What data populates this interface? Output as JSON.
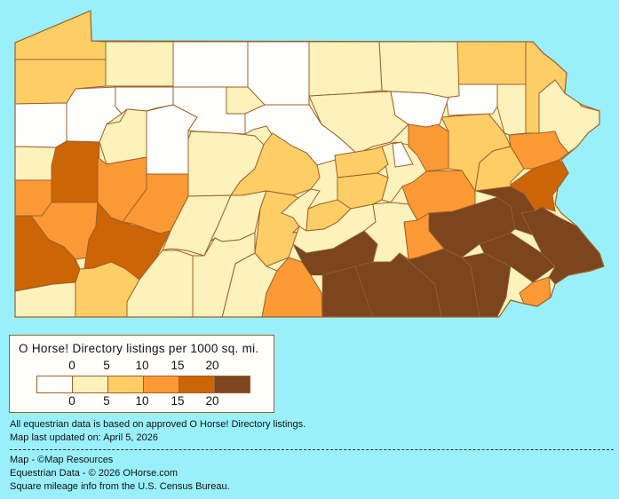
{
  "legend": {
    "title": "O Horse! Directory listings per 1000 sq. mi.",
    "top_ticks": [
      "0",
      "5",
      "10",
      "15",
      "20"
    ],
    "bottom_ticks": [
      "0",
      "5",
      "10",
      "15",
      "20"
    ],
    "class_colors": [
      "#fefefc",
      "#fdf2bb",
      "#fdce66",
      "#fb9935",
      "#cb6505",
      "#7c451e"
    ]
  },
  "colors": {
    "background": "#99f0fb",
    "border": "#a0602a"
  },
  "notes": {
    "data_basis": "All equestrian data is based on approved O Horse! Directory listings.",
    "updated": "Map last updated on: April 5, 2026",
    "map_credit": "Map - ©Map Resources",
    "data_credit": "Equestrian Data - © 2026 OHorse.com",
    "census_credit": "Square mileage info from the U.S. Census Bureau."
  }
}
